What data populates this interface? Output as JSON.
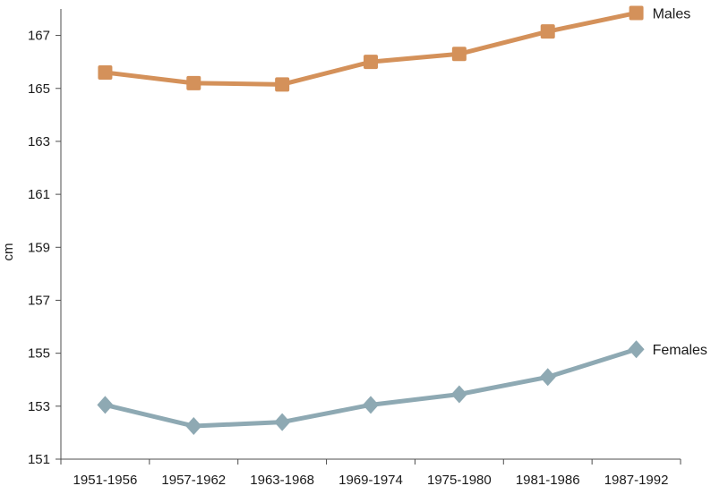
{
  "chart_data": {
    "type": "line",
    "title": "",
    "xlabel": "",
    "ylabel": "cm",
    "categories": [
      "1951-1956",
      "1957-1962",
      "1963-1968",
      "1969-1974",
      "1975-1980",
      "1981-1986",
      "1987-1992"
    ],
    "ylim": [
      151,
      168
    ],
    "yticks": [
      "151",
      "153",
      "155",
      "157",
      "159",
      "161",
      "163",
      "165",
      "167"
    ],
    "grid": false,
    "legend": "inline labels at end of lines",
    "series": [
      {
        "name": "Males",
        "values": [
          165.6,
          165.2,
          165.15,
          166.0,
          166.3,
          167.15,
          167.85
        ],
        "color": "#d4915a",
        "marker": "square"
      },
      {
        "name": "Females",
        "values": [
          153.05,
          152.25,
          152.4,
          153.05,
          153.45,
          154.1,
          155.15
        ],
        "color": "#8ea9b3",
        "marker": "diamond"
      }
    ]
  }
}
